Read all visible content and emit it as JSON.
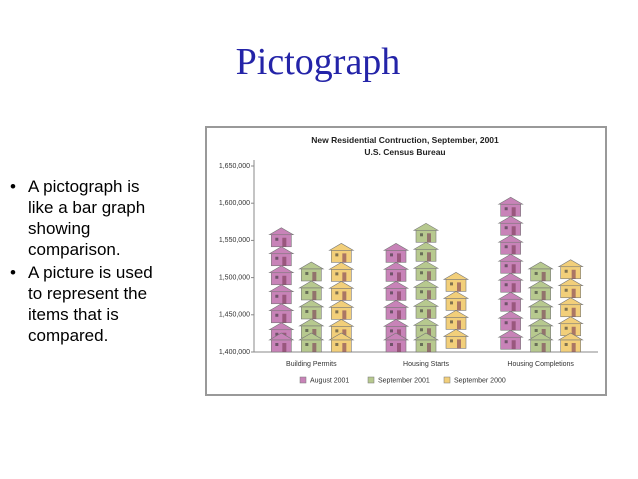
{
  "slide": {
    "title": "Pictograph",
    "bullets": [
      [
        "A pictograph is",
        "like a bar graph",
        "showing",
        "comparison."
      ],
      [
        "A picture is used",
        "to represent the",
        "items that is",
        "compared."
      ]
    ]
  },
  "chart_data": {
    "type": "pictograph",
    "title": "New Residential Contruction, September, 2001",
    "subtitle": "U.S. Census Bureau",
    "categories": [
      "Building Permits",
      "Housing Starts",
      "Housing Completions"
    ],
    "series": [
      {
        "name": "August 2001",
        "color": "#c883b8",
        "values": [
          1567000,
          1546000,
          1608000
        ]
      },
      {
        "name": "September 2001",
        "color": "#b7c98f",
        "values": [
          1521000,
          1573000,
          1521000
        ]
      },
      {
        "name": "September 2000",
        "color": "#f2cf7a",
        "values": [
          1546000,
          1507000,
          1524000
        ]
      }
    ],
    "ylim": [
      1400000,
      1650000
    ],
    "yticks": [
      {
        "value": 1400000,
        "label": "1,400,000"
      },
      {
        "value": 1450000,
        "label": "1,450,000"
      },
      {
        "value": 1500000,
        "label": "1,500,000"
      },
      {
        "value": 1550000,
        "label": "1,550,000"
      },
      {
        "value": 1600000,
        "label": "1,600,000"
      },
      {
        "value": 1650000,
        "label": "1,650,000"
      }
    ]
  }
}
